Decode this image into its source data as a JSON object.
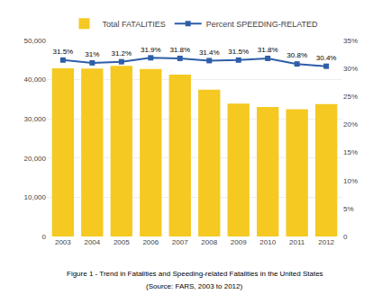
{
  "chart_data": {
    "type": "bar",
    "annotations": [
      "Figure 1 - Trend in Fatalities and Speeding-related Fatalities in the United States",
      "(Source: FARS, 2003 to 2012)"
    ],
    "categories": [
      "2003",
      "2004",
      "2005",
      "2006",
      "2007",
      "2008",
      "2009",
      "2010",
      "2011",
      "2012"
    ],
    "series": [
      {
        "name": "Total FATALITIES",
        "type": "bar",
        "color": "#F5C922",
        "values": [
          42884,
          42836,
          43510,
          42708,
          41259,
          37423,
          33883,
          32999,
          32479,
          33782
        ]
      },
      {
        "name": "Percent SPEEDING-RELATED",
        "type": "line",
        "color": "#2E5EA8",
        "marker": "square",
        "axis": "y2",
        "data_labels": true,
        "values": [
          31.5,
          31.0,
          31.2,
          31.9,
          31.8,
          31.4,
          31.5,
          31.8,
          30.8,
          30.4
        ],
        "value_labels": [
          "31.5%",
          "31%",
          "31.2%",
          "31.9%",
          "31.8%",
          "31.4%",
          "31.5%",
          "31.8%",
          "30.8%",
          "30.4%"
        ]
      }
    ],
    "ylim": [
      0,
      50000
    ],
    "yticks": [
      0,
      {
        "value": 10000,
        "label": "10,000"
      },
      {
        "value": 20000,
        "label": "20,000"
      },
      {
        "value": 30000,
        "label": "30,000"
      },
      {
        "value": 40000,
        "label": "40,000"
      },
      {
        "value": 50000,
        "label": "50,000"
      }
    ],
    "y2lim": [
      0,
      35
    ],
    "y2ticks": [
      0,
      {
        "value": 5,
        "label": "5%"
      },
      {
        "value": 10,
        "label": "10%"
      },
      {
        "value": 15,
        "label": "15%"
      },
      {
        "value": 20,
        "label": "20%"
      },
      {
        "value": 25,
        "label": "25%"
      },
      {
        "value": 30,
        "label": "30%"
      },
      {
        "value": 35,
        "label": "35%"
      }
    ],
    "grid": true,
    "legend": "top"
  }
}
